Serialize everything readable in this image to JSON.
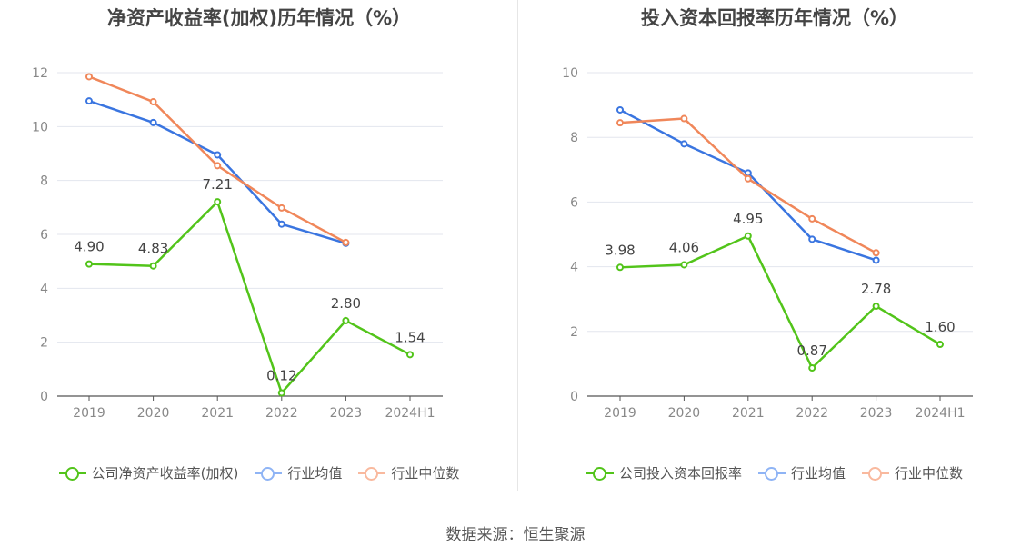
{
  "chart_data": [
    {
      "type": "line",
      "title": "净资产收益率(加权)历年情况（%）",
      "categories": [
        "2019",
        "2020",
        "2021",
        "2022",
        "2023",
        "2024H1"
      ],
      "ylim": [
        0,
        12
      ],
      "yticks": [
        0,
        2,
        4,
        6,
        8,
        10,
        12
      ],
      "grid": true,
      "legend_position": "bottom",
      "series": [
        {
          "name": "公司净资产收益率(加权)",
          "color": "#52c41a",
          "values": [
            4.9,
            4.83,
            7.21,
            0.12,
            2.8,
            1.54
          ],
          "labels": [
            "4.90",
            "4.83",
            "7.21",
            "0.12",
            "2.80",
            "1.54"
          ]
        },
        {
          "name": "行业均值",
          "color": "#3a75e0",
          "legend_color": "#8fb4f5",
          "values": [
            10.95,
            10.15,
            8.95,
            6.38,
            5.67,
            null
          ]
        },
        {
          "name": "行业中位数",
          "color": "#f0875a",
          "legend_color": "#f9b99e",
          "values": [
            11.85,
            10.92,
            8.55,
            6.98,
            5.7,
            null
          ]
        }
      ]
    },
    {
      "type": "line",
      "title": "投入资本回报率历年情况（%）",
      "categories": [
        "2019",
        "2020",
        "2021",
        "2022",
        "2023",
        "2024H1"
      ],
      "ylim": [
        0,
        10
      ],
      "yticks": [
        0,
        2,
        4,
        6,
        8,
        10
      ],
      "grid": true,
      "legend_position": "bottom",
      "series": [
        {
          "name": "公司投入资本回报率",
          "color": "#52c41a",
          "values": [
            3.98,
            4.06,
            4.95,
            0.87,
            2.78,
            1.6
          ],
          "labels": [
            "3.98",
            "4.06",
            "4.95",
            "0.87",
            "2.78",
            "1.60"
          ]
        },
        {
          "name": "行业均值",
          "color": "#3a75e0",
          "legend_color": "#8fb4f5",
          "values": [
            8.85,
            7.8,
            6.9,
            4.85,
            4.2,
            null
          ]
        },
        {
          "name": "行业中位数",
          "color": "#f0875a",
          "legend_color": "#f9b99e",
          "values": [
            8.45,
            8.58,
            6.72,
            5.48,
            4.43,
            null
          ]
        }
      ]
    }
  ],
  "footer": {
    "source": "数据来源：恒生聚源"
  }
}
